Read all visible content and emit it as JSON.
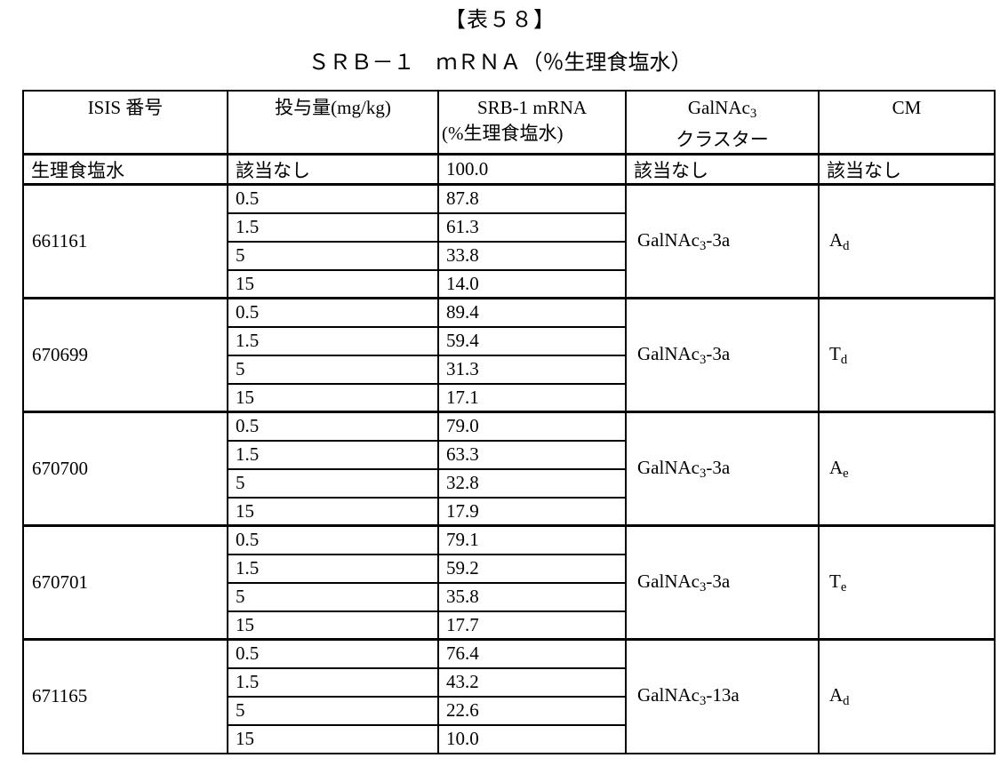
{
  "title": "【表５８】",
  "subtitle": "ＳＲＢ－１　ｍＲＮＡ（％生理食塩水）",
  "table": {
    "headers": {
      "isis": "ISIS 番号",
      "dose": "投与量(mg/kg)",
      "mrna_line1": "SRB-1 mRNA",
      "mrna_line2": "(%生理食塩水)",
      "galnac_prefix": "GalNAc",
      "galnac_sub": "3",
      "galnac_line2": "クラスター",
      "cm": "CM"
    },
    "saline_row": {
      "isis": "生理食塩水",
      "dose": "該当なし",
      "mrna": "100.0",
      "galnac": "該当なし",
      "cm": "該当なし"
    },
    "groups": [
      {
        "isis": "661161",
        "doses": [
          {
            "dose": "0.5",
            "mrna": "87.8"
          },
          {
            "dose": "1.5",
            "mrna": "61.3"
          },
          {
            "dose": "5",
            "mrna": "33.8"
          },
          {
            "dose": "15",
            "mrna": "14.0"
          }
        ],
        "galnac": {
          "prefix": "GalNAc",
          "sub": "3",
          "suffix": "-3a"
        },
        "cm": {
          "base": "A",
          "sub": "d"
        }
      },
      {
        "isis": "670699",
        "doses": [
          {
            "dose": "0.5",
            "mrna": "89.4"
          },
          {
            "dose": "1.5",
            "mrna": "59.4"
          },
          {
            "dose": "5",
            "mrna": "31.3"
          },
          {
            "dose": "15",
            "mrna": "17.1"
          }
        ],
        "galnac": {
          "prefix": "GalNAc",
          "sub": "3",
          "suffix": "-3a"
        },
        "cm": {
          "base": "T",
          "sub": "d"
        }
      },
      {
        "isis": "670700",
        "doses": [
          {
            "dose": "0.5",
            "mrna": "79.0"
          },
          {
            "dose": "1.5",
            "mrna": "63.3"
          },
          {
            "dose": "5",
            "mrna": "32.8"
          },
          {
            "dose": "15",
            "mrna": "17.9"
          }
        ],
        "galnac": {
          "prefix": "GalNAc",
          "sub": "3",
          "suffix": "-3a"
        },
        "cm": {
          "base": "A",
          "sub": "e"
        }
      },
      {
        "isis": "670701",
        "doses": [
          {
            "dose": "0.5",
            "mrna": "79.1"
          },
          {
            "dose": "1.5",
            "mrna": "59.2"
          },
          {
            "dose": "5",
            "mrna": "35.8"
          },
          {
            "dose": "15",
            "mrna": "17.7"
          }
        ],
        "galnac": {
          "prefix": "GalNAc",
          "sub": "3",
          "suffix": "-3a"
        },
        "cm": {
          "base": "T",
          "sub": "e"
        }
      },
      {
        "isis": "671165",
        "doses": [
          {
            "dose": "0.5",
            "mrna": "76.4"
          },
          {
            "dose": "1.5",
            "mrna": "43.2"
          },
          {
            "dose": "5",
            "mrna": "22.6"
          },
          {
            "dose": "15",
            "mrna": "10.0"
          }
        ],
        "galnac": {
          "prefix": "GalNAc",
          "sub": "3",
          "suffix": "-13a"
        },
        "cm": {
          "base": "A",
          "sub": "d"
        }
      }
    ]
  }
}
